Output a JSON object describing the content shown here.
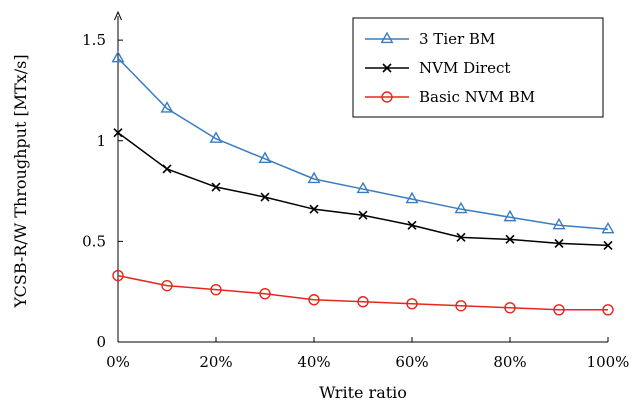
{
  "chart_data": {
    "type": "line",
    "title": "",
    "xlabel": "Write ratio",
    "ylabel": "YCSB-R/W Throughput [MTx/s]",
    "x": [
      0,
      10,
      20,
      30,
      40,
      50,
      60,
      70,
      80,
      90,
      100
    ],
    "x_tick_values": [
      0,
      20,
      40,
      60,
      80,
      100
    ],
    "x_tick_labels": [
      "0%",
      "20%",
      "40%",
      "60%",
      "80%",
      "100%"
    ],
    "xlim": [
      0,
      100
    ],
    "y_tick_values": [
      0,
      0.5,
      1,
      1.5
    ],
    "y_tick_labels": [
      "0",
      "0.5",
      "1",
      "1.5"
    ],
    "ylim": [
      0,
      1.6
    ],
    "grid": false,
    "legend_position": "top-right",
    "series": [
      {
        "name": "3 Tier BM",
        "color": "#3b7cbf",
        "marker": "triangle",
        "values": [
          1.41,
          1.16,
          1.01,
          0.91,
          0.81,
          0.76,
          0.71,
          0.66,
          0.62,
          0.58,
          0.56
        ]
      },
      {
        "name": "NVM Direct",
        "color": "#000000",
        "marker": "cross",
        "values": [
          1.04,
          0.86,
          0.77,
          0.72,
          0.66,
          0.63,
          0.58,
          0.52,
          0.51,
          0.49,
          0.48
        ]
      },
      {
        "name": "Basic NVM BM",
        "color": "#e8261c",
        "marker": "circle",
        "values": [
          0.33,
          0.28,
          0.26,
          0.24,
          0.21,
          0.2,
          0.19,
          0.18,
          0.17,
          0.16,
          0.16
        ]
      }
    ]
  }
}
